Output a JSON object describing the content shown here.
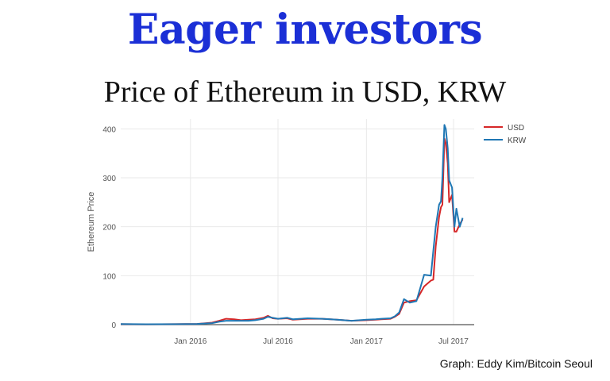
{
  "headline": "Eager investors",
  "subhead": "Price of Ethereum in USD, KRW",
  "credit": "Graph: Eddy Kim/Bitcoin Seoul",
  "chart_data": {
    "type": "line",
    "title": "",
    "xlabel": "",
    "ylabel": "Ethereum Price",
    "ylim": [
      0,
      420
    ],
    "xlim": [
      "2015-08-09",
      "2017-08-13"
    ],
    "grid": true,
    "legend_position": "top-right",
    "yticks": [
      0,
      100,
      200,
      300,
      400
    ],
    "xticks": [
      {
        "date": "2016-01-01",
        "label": "Jan 2016"
      },
      {
        "date": "2016-07-01",
        "label": "Jul 2016"
      },
      {
        "date": "2017-01-01",
        "label": "Jan 2017"
      },
      {
        "date": "2017-07-01",
        "label": "Jul 2017"
      }
    ],
    "series": [
      {
        "name": "USD",
        "color": "#d62728",
        "points": [
          [
            "2015-08-09",
            1
          ],
          [
            "2015-10-01",
            0.7
          ],
          [
            "2015-12-01",
            0.9
          ],
          [
            "2016-01-15",
            1.5
          ],
          [
            "2016-02-15",
            4
          ],
          [
            "2016-03-01",
            8
          ],
          [
            "2016-03-15",
            12
          ],
          [
            "2016-04-01",
            11
          ],
          [
            "2016-04-15",
            9
          ],
          [
            "2016-05-01",
            10
          ],
          [
            "2016-05-15",
            11
          ],
          [
            "2016-06-01",
            14
          ],
          [
            "2016-06-10",
            18
          ],
          [
            "2016-06-20",
            13
          ],
          [
            "2016-07-01",
            12
          ],
          [
            "2016-07-20",
            13
          ],
          [
            "2016-08-01",
            10
          ],
          [
            "2016-09-01",
            12
          ],
          [
            "2016-10-01",
            12
          ],
          [
            "2016-11-01",
            10
          ],
          [
            "2016-12-01",
            8
          ],
          [
            "2017-01-01",
            9
          ],
          [
            "2017-01-20",
            10
          ],
          [
            "2017-02-01",
            11
          ],
          [
            "2017-02-20",
            12
          ],
          [
            "2017-03-01",
            16
          ],
          [
            "2017-03-10",
            22
          ],
          [
            "2017-03-20",
            45
          ],
          [
            "2017-04-01",
            48
          ],
          [
            "2017-04-15",
            50
          ],
          [
            "2017-05-01",
            78
          ],
          [
            "2017-05-15",
            90
          ],
          [
            "2017-05-20",
            92
          ],
          [
            "2017-05-25",
            160
          ],
          [
            "2017-06-01",
            220
          ],
          [
            "2017-06-05",
            240
          ],
          [
            "2017-06-08",
            245
          ],
          [
            "2017-06-12",
            380
          ],
          [
            "2017-06-15",
            370
          ],
          [
            "2017-06-19",
            330
          ],
          [
            "2017-06-22",
            250
          ],
          [
            "2017-06-28",
            265
          ],
          [
            "2017-07-03",
            190
          ],
          [
            "2017-07-07",
            190
          ],
          [
            "2017-07-14",
            205
          ],
          [
            "2017-07-20",
            215
          ]
        ]
      },
      {
        "name": "KRW",
        "color": "#1f77b4",
        "points": [
          [
            "2015-08-09",
            1.2
          ],
          [
            "2015-10-01",
            0.8
          ],
          [
            "2015-12-01",
            1
          ],
          [
            "2016-01-15",
            1.5
          ],
          [
            "2016-02-15",
            3
          ],
          [
            "2016-03-01",
            6
          ],
          [
            "2016-03-15",
            8
          ],
          [
            "2016-04-01",
            8
          ],
          [
            "2016-04-15",
            8
          ],
          [
            "2016-05-01",
            8
          ],
          [
            "2016-05-15",
            9
          ],
          [
            "2016-06-01",
            12
          ],
          [
            "2016-06-10",
            16
          ],
          [
            "2016-06-20",
            14
          ],
          [
            "2016-07-01",
            12
          ],
          [
            "2016-07-20",
            14
          ],
          [
            "2016-08-01",
            11
          ],
          [
            "2016-09-01",
            13
          ],
          [
            "2016-10-01",
            12
          ],
          [
            "2016-11-01",
            10
          ],
          [
            "2016-12-01",
            8
          ],
          [
            "2017-01-01",
            10
          ],
          [
            "2017-01-20",
            11
          ],
          [
            "2017-02-01",
            12
          ],
          [
            "2017-02-20",
            13
          ],
          [
            "2017-03-01",
            17
          ],
          [
            "2017-03-10",
            25
          ],
          [
            "2017-03-20",
            52
          ],
          [
            "2017-04-01",
            45
          ],
          [
            "2017-04-15",
            48
          ],
          [
            "2017-05-01",
            102
          ],
          [
            "2017-05-15",
            100
          ],
          [
            "2017-05-20",
            150
          ],
          [
            "2017-05-25",
            200
          ],
          [
            "2017-06-01",
            245
          ],
          [
            "2017-06-05",
            252
          ],
          [
            "2017-06-08",
            300
          ],
          [
            "2017-06-12",
            408
          ],
          [
            "2017-06-15",
            400
          ],
          [
            "2017-06-19",
            360
          ],
          [
            "2017-06-22",
            295
          ],
          [
            "2017-06-28",
            280
          ],
          [
            "2017-07-03",
            200
          ],
          [
            "2017-07-07",
            237
          ],
          [
            "2017-07-14",
            200
          ],
          [
            "2017-07-20",
            218
          ]
        ]
      }
    ]
  }
}
